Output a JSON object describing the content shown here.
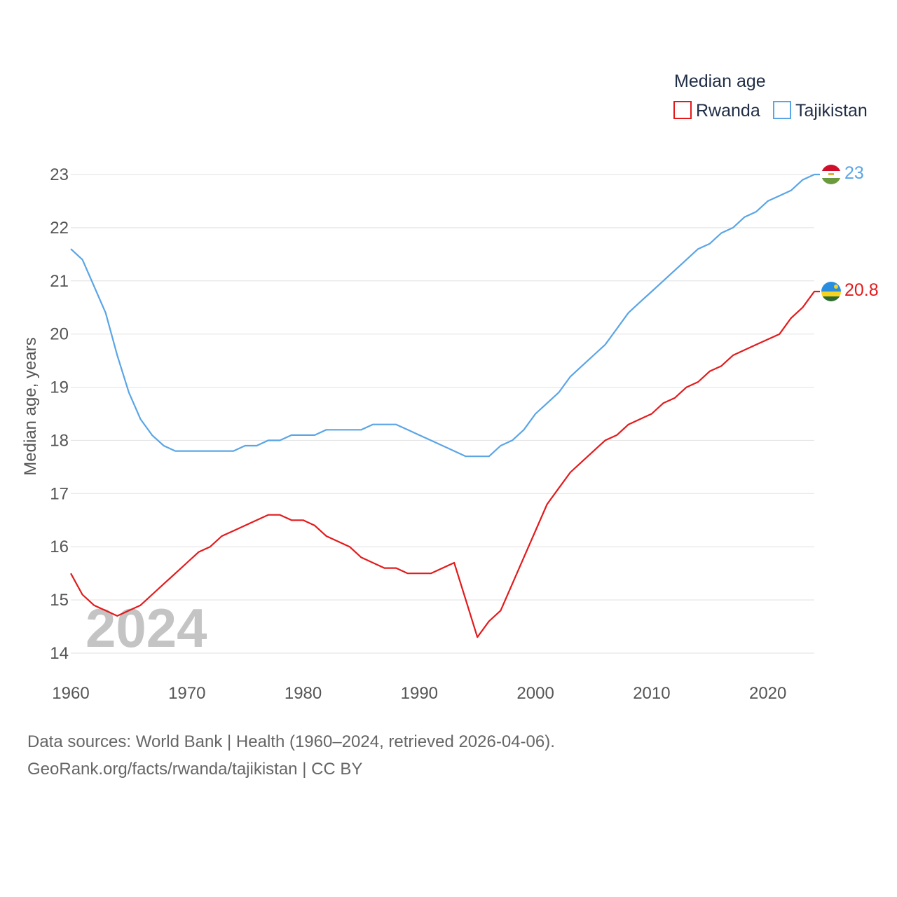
{
  "chart_data": {
    "type": "line",
    "title": "Median age",
    "ylabel": "Median age, years",
    "xlabel": "",
    "xlim": [
      1960,
      2024
    ],
    "ylim": [
      14,
      23
    ],
    "x_ticks": [
      1960,
      1970,
      1980,
      1990,
      2000,
      2010,
      2020
    ],
    "y_ticks": [
      14,
      15,
      16,
      17,
      18,
      19,
      20,
      21,
      22,
      23
    ],
    "grid": true,
    "legend_position": "top-right",
    "current_year": "2024",
    "x": [
      1960,
      1961,
      1962,
      1963,
      1964,
      1965,
      1966,
      1967,
      1968,
      1969,
      1970,
      1971,
      1972,
      1973,
      1974,
      1975,
      1976,
      1977,
      1978,
      1979,
      1980,
      1981,
      1982,
      1983,
      1984,
      1985,
      1986,
      1987,
      1988,
      1989,
      1990,
      1991,
      1992,
      1993,
      1994,
      1995,
      1996,
      1997,
      1998,
      1999,
      2000,
      2001,
      2002,
      2003,
      2004,
      2005,
      2006,
      2007,
      2008,
      2009,
      2010,
      2011,
      2012,
      2013,
      2014,
      2015,
      2016,
      2017,
      2018,
      2019,
      2020,
      2021,
      2022,
      2023,
      2024
    ],
    "series": [
      {
        "name": "Rwanda",
        "color": "#e31a1c",
        "end_label": "20.8",
        "flag": "rwanda-flag",
        "values": [
          15.5,
          15.1,
          14.9,
          14.8,
          14.7,
          14.8,
          14.9,
          15.1,
          15.3,
          15.5,
          15.7,
          15.9,
          16.0,
          16.2,
          16.3,
          16.4,
          16.5,
          16.6,
          16.6,
          16.5,
          16.5,
          16.4,
          16.2,
          16.1,
          16.0,
          15.8,
          15.7,
          15.6,
          15.6,
          15.5,
          15.5,
          15.5,
          15.6,
          15.7,
          15.0,
          14.3,
          14.6,
          14.8,
          15.3,
          15.8,
          16.3,
          16.8,
          17.1,
          17.4,
          17.6,
          17.8,
          18.0,
          18.1,
          18.3,
          18.4,
          18.5,
          18.7,
          18.8,
          19.0,
          19.1,
          19.3,
          19.4,
          19.6,
          19.7,
          19.8,
          19.9,
          20.0,
          20.3,
          20.5,
          20.8
        ]
      },
      {
        "name": "Tajikistan",
        "color": "#5aa5e6",
        "end_label": "23",
        "flag": "tajikistan-flag",
        "values": [
          21.6,
          21.4,
          20.9,
          20.4,
          19.6,
          18.9,
          18.4,
          18.1,
          17.9,
          17.8,
          17.8,
          17.8,
          17.8,
          17.8,
          17.8,
          17.9,
          17.9,
          18.0,
          18.0,
          18.1,
          18.1,
          18.1,
          18.2,
          18.2,
          18.2,
          18.2,
          18.3,
          18.3,
          18.3,
          18.2,
          18.1,
          18.0,
          17.9,
          17.8,
          17.7,
          17.7,
          17.7,
          17.9,
          18.0,
          18.2,
          18.5,
          18.7,
          18.9,
          19.2,
          19.4,
          19.6,
          19.8,
          20.1,
          20.4,
          20.6,
          20.8,
          21.0,
          21.2,
          21.4,
          21.6,
          21.7,
          21.9,
          22.0,
          22.2,
          22.3,
          22.5,
          22.6,
          22.7,
          22.9,
          23.0
        ]
      }
    ]
  },
  "footer": {
    "line1": "Data sources: World Bank | Health (1960–2024, retrieved 2026-04-06).",
    "line2": "GeoRank.org/facts/rwanda/tajikistan | CC BY"
  }
}
